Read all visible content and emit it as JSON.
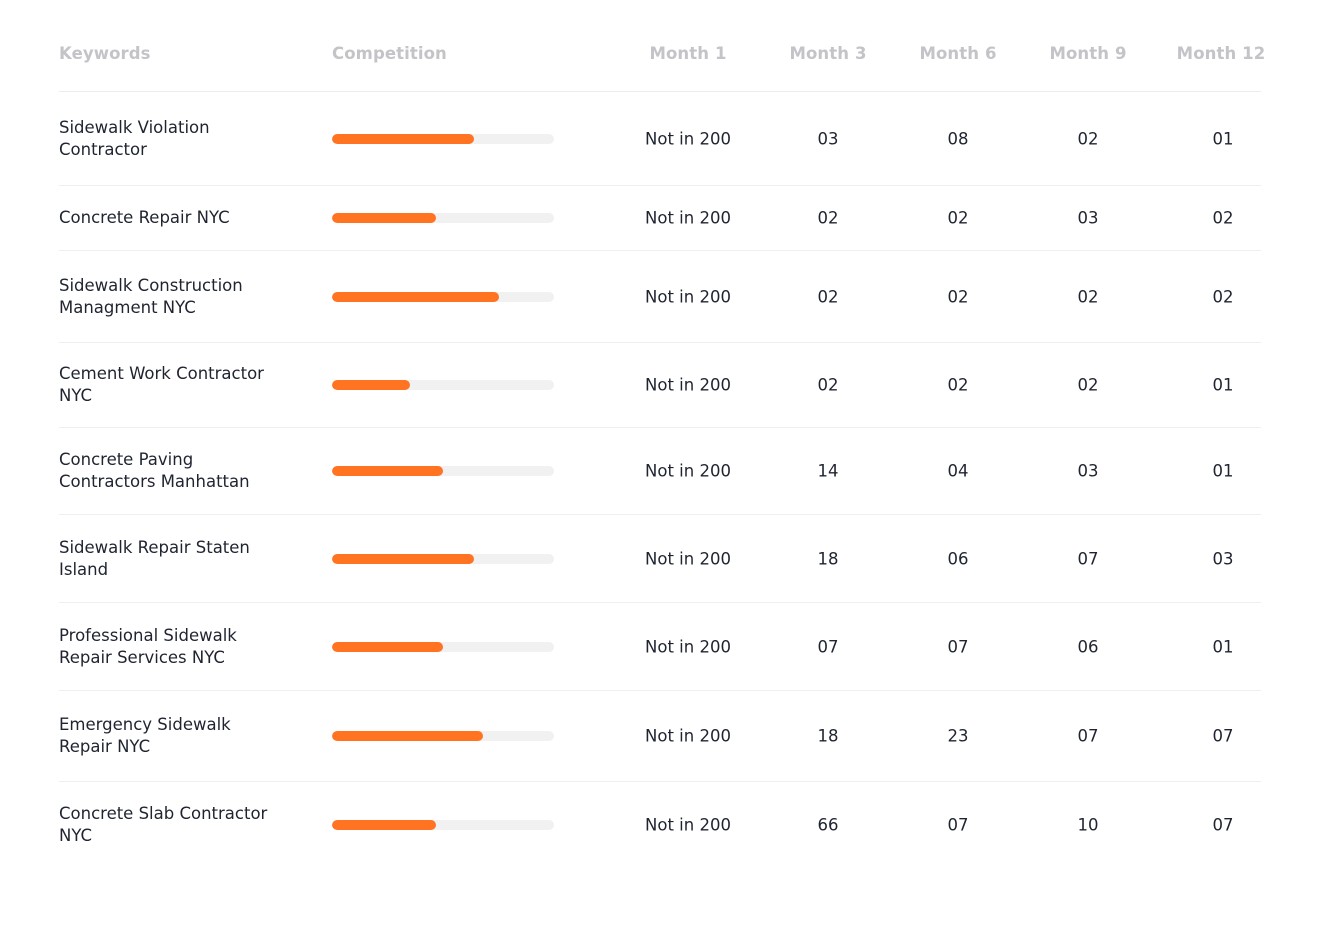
{
  "headers": {
    "keywords": "Keywords",
    "competition": "Competition",
    "month1": "Month 1",
    "month3": "Month 3",
    "month6": "Month 6",
    "month9": "Month 9",
    "month12": "Month 12"
  },
  "colors": {
    "bar_fill": "#ff7321",
    "bar_track": "#f1f1f1",
    "header_text": "#c3c3c8",
    "body_text": "#1f2430"
  },
  "rows": [
    {
      "keyword": "Sidewalk Violation Contractor",
      "competition": 0.64,
      "month1": "Not in 200",
      "month3": "03",
      "month6": "08",
      "month9": "02",
      "month12": "01"
    },
    {
      "keyword": "Concrete Repair NYC",
      "competition": 0.47,
      "month1": "Not in 200",
      "month3": "02",
      "month6": "02",
      "month9": "03",
      "month12": "02"
    },
    {
      "keyword": "Sidewalk Construction Managment NYC",
      "competition": 0.75,
      "month1": "Not in 200",
      "month3": "02",
      "month6": "02",
      "month9": "02",
      "month12": "02"
    },
    {
      "keyword": "Cement Work Contractor NYC",
      "competition": 0.35,
      "month1": "Not in 200",
      "month3": "02",
      "month6": "02",
      "month9": "02",
      "month12": "01"
    },
    {
      "keyword": "Concrete Paving Contractors Manhattan",
      "competition": 0.5,
      "month1": "Not in 200",
      "month3": "14",
      "month6": "04",
      "month9": "03",
      "month12": "01"
    },
    {
      "keyword": "Sidewalk Repair Staten Island",
      "competition": 0.64,
      "month1": "Not in 200",
      "month3": "18",
      "month6": "06",
      "month9": "07",
      "month12": "03"
    },
    {
      "keyword": "Professional Sidewalk Repair Services NYC",
      "competition": 0.5,
      "month1": "Not in 200",
      "month3": "07",
      "month6": "07",
      "month9": "06",
      "month12": "01"
    },
    {
      "keyword": "Emergency Sidewalk Repair NYC",
      "competition": 0.68,
      "month1": "Not in 200",
      "month3": "18",
      "month6": "23",
      "month9": "07",
      "month12": "07"
    },
    {
      "keyword": "Concrete Slab Contractor NYC",
      "competition": 0.47,
      "month1": "Not in 200",
      "month3": "66",
      "month6": "07",
      "month9": "10",
      "month12": "07"
    }
  ]
}
